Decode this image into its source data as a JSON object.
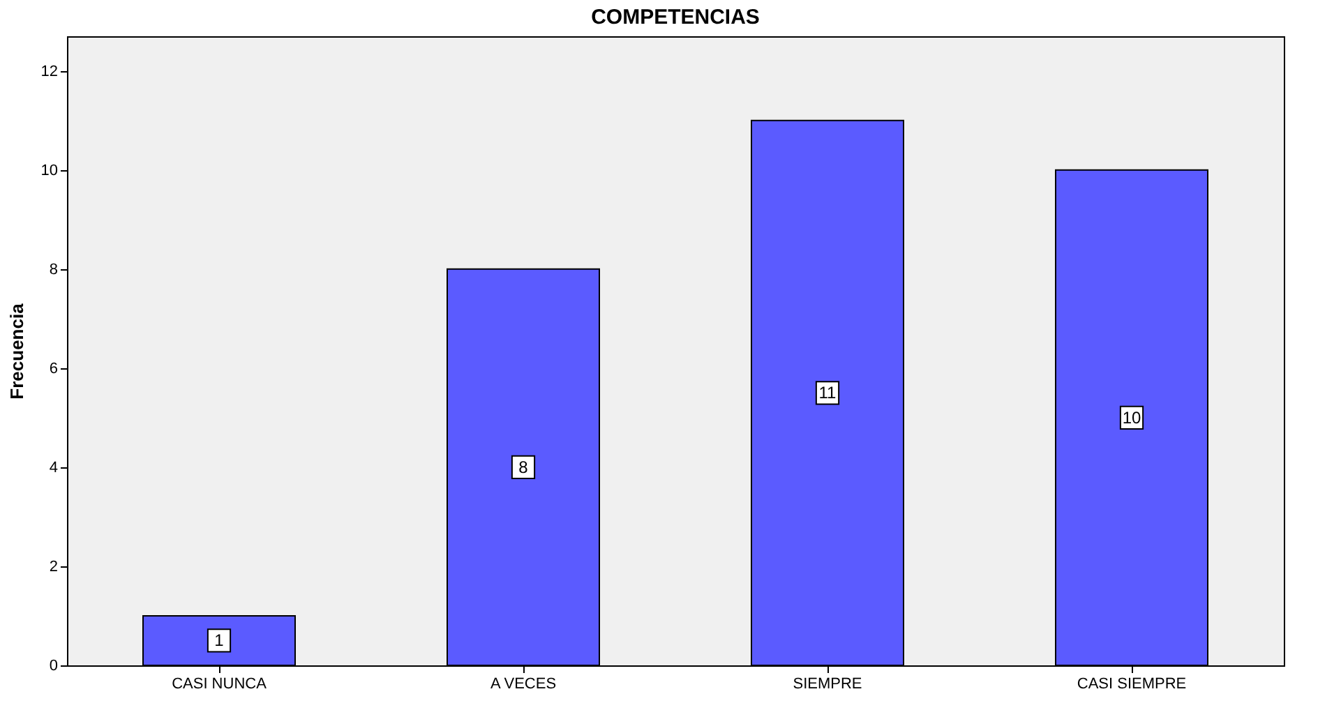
{
  "chart_data": {
    "type": "bar",
    "title": "COMPETENCIAS",
    "ylabel": "Frecuencia",
    "categories": [
      "CASI NUNCA",
      "A VECES",
      "SIEMPRE",
      "CASI SIEMPRE"
    ],
    "values": [
      1,
      8,
      11,
      10
    ],
    "color": "#5b5bff",
    "ylim": [
      0,
      12.7
    ],
    "yticks": [
      0,
      2,
      4,
      6,
      8,
      10,
      12
    ],
    "data_labels": true
  }
}
